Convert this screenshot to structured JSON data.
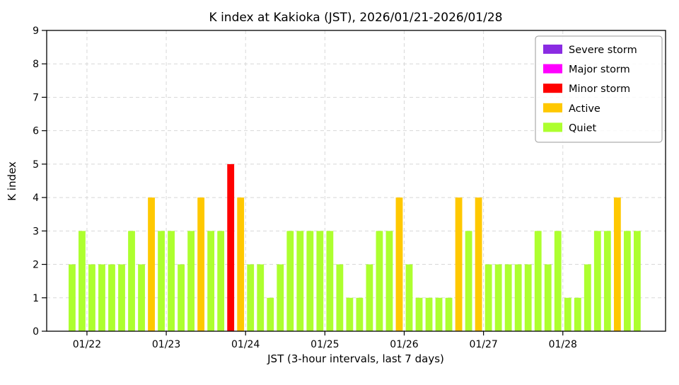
{
  "page": {
    "background": "#ffffff"
  },
  "chart_data": {
    "type": "bar",
    "title": "K index at Kakioka (JST), 2026/01/21-2026/01/28",
    "xlabel": "JST (3-hour intervals, last 7 days)",
    "ylabel": "K index",
    "ylim": [
      0,
      9
    ],
    "yticks": [
      0,
      1,
      2,
      3,
      4,
      5,
      6,
      7,
      8,
      9
    ],
    "x_tick_labels": [
      "01/22",
      "01/23",
      "01/24",
      "01/25",
      "01/26",
      "01/27",
      "01/28"
    ],
    "interval_hours": 3,
    "grid": "dashed",
    "legend_position": "upper right",
    "legend": [
      {
        "label": "Severe storm",
        "color": "#8a2be2"
      },
      {
        "label": "Major storm",
        "color": "#ff00ff"
      },
      {
        "label": "Minor storm",
        "color": "#ff0000"
      },
      {
        "label": "Active",
        "color": "#ffc800"
      },
      {
        "label": "Quiet",
        "color": "#adff2f"
      }
    ],
    "days": [
      {
        "date": "01/21",
        "values": [
          2,
          3
        ]
      },
      {
        "date": "01/22",
        "values": [
          2,
          2,
          2,
          2,
          3,
          2,
          4,
          3
        ]
      },
      {
        "date": "01/23",
        "values": [
          3,
          2,
          3,
          4,
          3,
          3,
          5,
          4
        ]
      },
      {
        "date": "01/24",
        "values": [
          2,
          2,
          1,
          2,
          3,
          3,
          3,
          3
        ]
      },
      {
        "date": "01/25",
        "values": [
          3,
          2,
          1,
          1,
          2,
          3,
          3,
          4
        ]
      },
      {
        "date": "01/26",
        "values": [
          2,
          1,
          1,
          1,
          1,
          4,
          3,
          4
        ]
      },
      {
        "date": "01/27",
        "values": [
          2,
          2,
          2,
          2,
          2,
          3,
          2,
          3
        ]
      },
      {
        "date": "01/28",
        "values": [
          1,
          1,
          2,
          3,
          3,
          4,
          3,
          3
        ]
      }
    ]
  }
}
